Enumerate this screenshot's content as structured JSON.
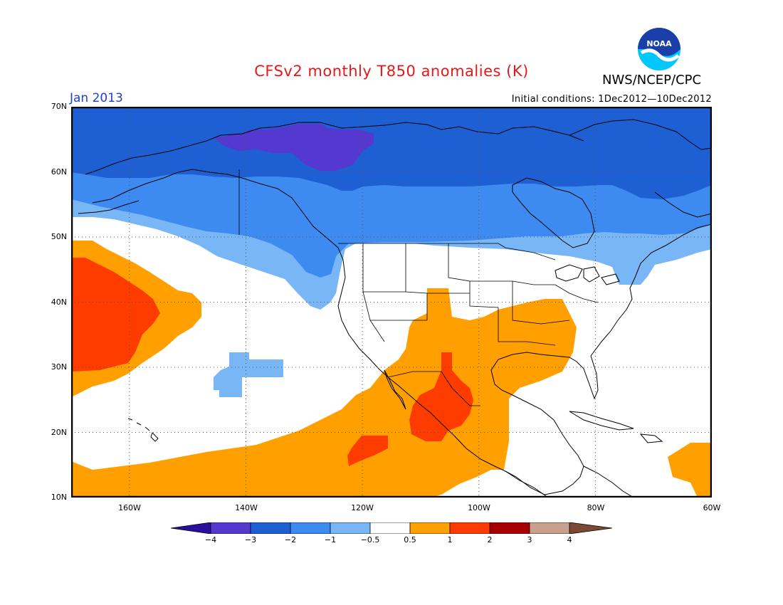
{
  "header": {
    "title": "CFSv2 monthly T850 anomalies (K)",
    "agency": "NWS/NCEP/CPC",
    "logo_text": "NOAA",
    "period": "Jan 2013",
    "initial_conditions": "Initial conditions: 1Dec2012—10Dec2012"
  },
  "axes": {
    "lat_labels": [
      "70N",
      "60N",
      "50N",
      "40N",
      "30N",
      "20N",
      "10N"
    ],
    "lon_labels": [
      "160W",
      "140W",
      "120W",
      "100W",
      "80W",
      "60W"
    ]
  },
  "colorbar": {
    "labels": [
      "−4",
      "−3",
      "−2",
      "−1",
      "−0.5",
      "0.5",
      "1",
      "2",
      "3",
      "4"
    ],
    "colors": [
      "#2a0f9c",
      "#5538d0",
      "#1f5fd4",
      "#3d8af0",
      "#79b6f5",
      "#ffffff",
      "#ffa000",
      "#ff3c00",
      "#a80000",
      "#c8a08c",
      "#7a4a35"
    ]
  },
  "map_extent": {
    "lon": [
      -170,
      -60
    ],
    "lat": [
      10,
      70
    ]
  }
}
